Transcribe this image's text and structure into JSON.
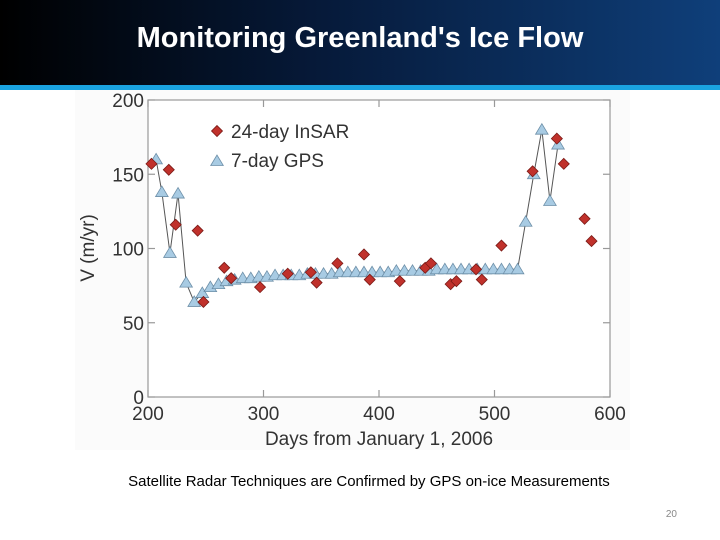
{
  "slide": {
    "title": "Monitoring Greenland's Ice Flow",
    "caption": "Satellite Radar Techniques are Confirmed by GPS on-ice Measurements",
    "page_number": "20"
  },
  "colors": {
    "insar": "#c0312b",
    "gps": "#a8cbe3",
    "gps_line": "#555555"
  },
  "chart_data": {
    "type": "scatter",
    "title": "",
    "xlabel": "Days from January 1, 2006",
    "ylabel": "V (m/yr)",
    "xlim": [
      200,
      600
    ],
    "ylim": [
      0,
      200
    ],
    "xticks": [
      200,
      300,
      400,
      500,
      600
    ],
    "yticks": [
      0,
      50,
      100,
      150,
      200
    ],
    "legend_position": "top-left",
    "series": [
      {
        "name": "24-day InSAR",
        "marker": "diamond",
        "x": [
          203,
          218,
          224,
          243,
          248,
          266,
          272,
          297,
          321,
          341,
          346,
          364,
          387,
          392,
          418,
          440,
          445,
          462,
          467,
          484,
          489,
          506,
          533,
          554,
          560,
          578,
          584
        ],
        "y": [
          157,
          153,
          116,
          112,
          64,
          87,
          80,
          74,
          83,
          84,
          77,
          90,
          96,
          79,
          78,
          87,
          90,
          76,
          78,
          86,
          79,
          102,
          152,
          174,
          157,
          120,
          105
        ]
      },
      {
        "name": "7-day GPS",
        "marker": "triangle",
        "connected": true,
        "x": [
          207,
          212,
          219,
          226,
          233,
          240,
          247,
          254,
          261,
          268,
          275,
          282,
          289,
          296,
          303,
          310,
          317,
          324,
          331,
          338,
          345,
          352,
          359,
          366,
          373,
          380,
          387,
          394,
          401,
          408,
          415,
          422,
          429,
          436,
          443,
          450,
          457,
          464,
          471,
          478,
          485,
          492,
          499,
          506,
          513,
          520,
          527,
          534,
          541,
          548,
          555
        ],
        "y": [
          160,
          138,
          97,
          137,
          77,
          64,
          70,
          74,
          76,
          78,
          79,
          80,
          80,
          81,
          81,
          82,
          82,
          82,
          82,
          83,
          83,
          83,
          83,
          84,
          84,
          84,
          84,
          84,
          84,
          84,
          85,
          85,
          85,
          85,
          85,
          86,
          86,
          86,
          86,
          86,
          86,
          86,
          86,
          86,
          86,
          86,
          118,
          150,
          180,
          132,
          170
        ]
      }
    ]
  }
}
